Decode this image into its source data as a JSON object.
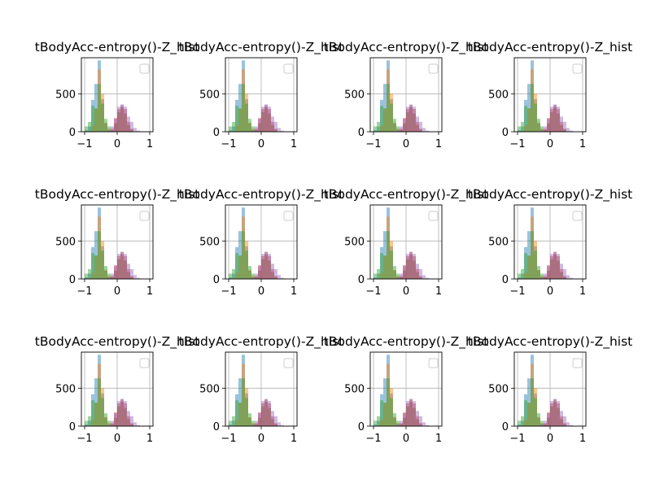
{
  "chart_data": {
    "type": "bar",
    "layout": "3x4 grid of identical overlaid histograms",
    "grid": true,
    "legend": "top-right (empty)",
    "title": "tBodyAcc-entropy()-Z_hist",
    "xlim": [
      -1,
      1
    ],
    "ylim": [
      0,
      950
    ],
    "x_ticks": [
      -1,
      0,
      1
    ],
    "y_ticks": [
      0,
      500
    ],
    "series": [
      {
        "color": "#1f77b4",
        "alpha": 0.45,
        "bins": [
          {
            "x0": -1.0,
            "x1": -0.9,
            "v": 20
          },
          {
            "x0": -0.9,
            "x1": -0.8,
            "v": 70
          },
          {
            "x0": -0.8,
            "x1": -0.7,
            "v": 420
          },
          {
            "x0": -0.7,
            "x1": -0.6,
            "v": 630
          },
          {
            "x0": -0.6,
            "x1": -0.5,
            "v": 940
          },
          {
            "x0": -0.5,
            "x1": -0.4,
            "v": 430
          },
          {
            "x0": -0.4,
            "x1": -0.3,
            "v": 110
          },
          {
            "x0": -0.3,
            "x1": -0.2,
            "v": 25
          }
        ]
      },
      {
        "color": "#ff7f0e",
        "alpha": 0.45,
        "bins": [
          {
            "x0": -0.9,
            "x1": -0.8,
            "v": 10
          },
          {
            "x0": -0.8,
            "x1": -0.7,
            "v": 80
          },
          {
            "x0": -0.7,
            "x1": -0.6,
            "v": 300
          },
          {
            "x0": -0.6,
            "x1": -0.5,
            "v": 820
          },
          {
            "x0": -0.5,
            "x1": -0.4,
            "v": 500
          },
          {
            "x0": -0.4,
            "x1": -0.3,
            "v": 120
          },
          {
            "x0": -0.3,
            "x1": -0.2,
            "v": 40
          }
        ]
      },
      {
        "color": "#2ca02c",
        "alpha": 0.45,
        "bins": [
          {
            "x0": -1.0,
            "x1": -0.9,
            "v": 70
          },
          {
            "x0": -0.9,
            "x1": -0.8,
            "v": 130
          },
          {
            "x0": -0.8,
            "x1": -0.7,
            "v": 340
          },
          {
            "x0": -0.7,
            "x1": -0.6,
            "v": 310
          },
          {
            "x0": -0.6,
            "x1": -0.5,
            "v": 630
          },
          {
            "x0": -0.5,
            "x1": -0.4,
            "v": 370
          },
          {
            "x0": -0.4,
            "x1": -0.3,
            "v": 170
          },
          {
            "x0": -0.3,
            "x1": -0.2,
            "v": 70
          },
          {
            "x0": -0.2,
            "x1": -0.1,
            "v": 20
          }
        ]
      },
      {
        "color": "#d62728",
        "alpha": 0.45,
        "bins": [
          {
            "x0": -0.2,
            "x1": -0.1,
            "v": 40
          },
          {
            "x0": -0.1,
            "x1": 0.0,
            "v": 180
          },
          {
            "x0": 0.0,
            "x1": 0.1,
            "v": 300
          },
          {
            "x0": 0.1,
            "x1": 0.2,
            "v": 350
          },
          {
            "x0": 0.2,
            "x1": 0.3,
            "v": 300
          },
          {
            "x0": 0.3,
            "x1": 0.4,
            "v": 130
          },
          {
            "x0": 0.4,
            "x1": 0.5,
            "v": 40
          }
        ]
      },
      {
        "color": "#9467bd",
        "alpha": 0.45,
        "bins": [
          {
            "x0": -0.3,
            "x1": -0.2,
            "v": 20
          },
          {
            "x0": -0.2,
            "x1": -0.1,
            "v": 70
          },
          {
            "x0": -0.1,
            "x1": 0.0,
            "v": 170
          },
          {
            "x0": 0.0,
            "x1": 0.1,
            "v": 330
          },
          {
            "x0": 0.1,
            "x1": 0.2,
            "v": 360
          },
          {
            "x0": 0.2,
            "x1": 0.3,
            "v": 330
          },
          {
            "x0": 0.3,
            "x1": 0.4,
            "v": 200
          },
          {
            "x0": 0.4,
            "x1": 0.5,
            "v": 130
          },
          {
            "x0": 0.5,
            "x1": 0.6,
            "v": 50
          },
          {
            "x0": 0.6,
            "x1": 0.7,
            "v": 15
          }
        ]
      },
      {
        "color": "#8c564b",
        "alpha": 0.45,
        "bins": [
          {
            "x0": -0.2,
            "x1": -0.1,
            "v": 20
          },
          {
            "x0": -0.1,
            "x1": 0.0,
            "v": 110
          },
          {
            "x0": 0.0,
            "x1": 0.1,
            "v": 260
          },
          {
            "x0": 0.1,
            "x1": 0.2,
            "v": 320
          },
          {
            "x0": 0.2,
            "x1": 0.3,
            "v": 240
          },
          {
            "x0": 0.3,
            "x1": 0.4,
            "v": 90
          },
          {
            "x0": 0.4,
            "x1": 0.5,
            "v": 25
          }
        ]
      }
    ]
  }
}
